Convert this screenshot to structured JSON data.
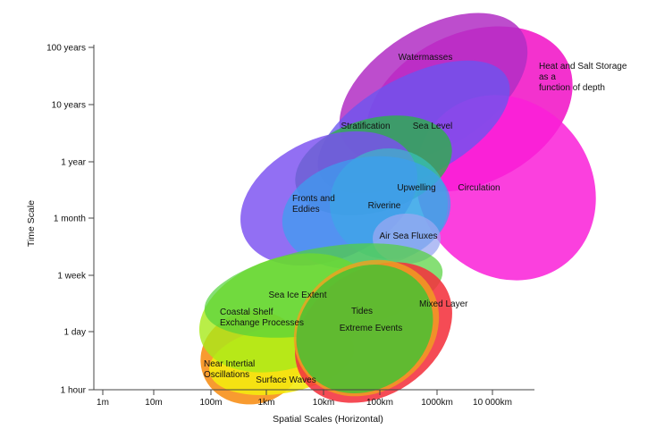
{
  "chart_data": {
    "type": "scale-diagram",
    "title": "",
    "xlabel": "Spatial Scales (Horizontal)",
    "ylabel": "Time Scale",
    "x_ticks": [
      "1m",
      "10m",
      "100m",
      "1km",
      "10km",
      "100km",
      "1000km",
      "10 000km"
    ],
    "y_ticks": [
      "1 hour",
      "1 day",
      "1 week",
      "1 month",
      "1 year",
      "10 years",
      "100 years"
    ],
    "regions": [
      {
        "name": "Heat and Salt Storage as a function of depth",
        "lines": [
          "Heat and Salt Storage",
          "as a",
          "function of depth"
        ],
        "color": "#f21cc9",
        "x_range": [
          "100km",
          "10 000km"
        ],
        "y_range": [
          "1 month",
          "100 years"
        ]
      },
      {
        "name": "Watermasses",
        "lines": [
          "Watermasses"
        ],
        "color": "#b12ec4",
        "x_range": [
          "10km",
          "10 000km"
        ],
        "y_range": [
          "1 year",
          "100 years"
        ]
      },
      {
        "name": "Circulation",
        "lines": [
          "Circulation"
        ],
        "color": "#fa1ed8",
        "x_range": [
          "100km",
          "10 000km"
        ],
        "y_range": [
          "1 week",
          "10 years"
        ]
      },
      {
        "name": "Sea Level",
        "lines": [
          "Sea Level"
        ],
        "color": "#6a55f0",
        "x_range": [
          "10km",
          "1000km"
        ],
        "y_range": [
          "1 month",
          "10 years"
        ]
      },
      {
        "name": "Stratification",
        "lines": [
          "Stratification"
        ],
        "color": "#2fad4e",
        "x_range": [
          "10km",
          "1000km"
        ],
        "y_range": [
          "1 week",
          "10 years"
        ]
      },
      {
        "name": "Fronts and Eddies",
        "lines": [
          "Fronts and",
          "Eddies"
        ],
        "color": "#7a4ff0",
        "x_range": [
          "1km",
          "100km"
        ],
        "y_range": [
          "1 week",
          "1 year"
        ]
      },
      {
        "name": "Upwelling",
        "lines": [
          "Upwelling"
        ],
        "color": "#35c8c8",
        "x_range": [
          "10km",
          "1000km"
        ],
        "y_range": [
          "1 week",
          "1 year"
        ]
      },
      {
        "name": "Riverine",
        "lines": [
          "Riverine"
        ],
        "color": "#3aa0f0",
        "x_range": [
          "10km",
          "1000km"
        ],
        "y_range": [
          "1 week",
          "1 year"
        ]
      },
      {
        "name": "Air Sea Fluxes",
        "lines": [
          "Air Sea Fluxes"
        ],
        "color": "#9aa8f2",
        "x_range": [
          "10km",
          "1000km"
        ],
        "y_range": [
          "1 week",
          "1 month"
        ]
      },
      {
        "name": "Near Intertial Oscillations",
        "lines": [
          "Near Intertial",
          "Oscillations"
        ],
        "color": "#f7931e",
        "x_range": [
          "100m",
          "10km"
        ],
        "y_range": [
          "1 hour",
          "1 day"
        ]
      },
      {
        "name": "Surface Waves",
        "lines": [
          "Surface Waves"
        ],
        "color": "#f4ea10",
        "x_range": [
          "100m",
          "100km"
        ],
        "y_range": [
          "1 hour",
          "1 day"
        ]
      },
      {
        "name": "Coastal Shelf Exchange Processes",
        "lines": [
          "Coastal Shelf",
          "Exchange Processes"
        ],
        "color": "#a8ea1a",
        "x_range": [
          "100m",
          "100km"
        ],
        "y_range": [
          "1 hour",
          "1 week"
        ]
      },
      {
        "name": "Sea Ice Extent",
        "lines": [
          "Sea Ice Extent"
        ],
        "color": "#52d23a",
        "x_range": [
          "1km",
          "1000km"
        ],
        "y_range": [
          "1 day",
          "1 month"
        ]
      },
      {
        "name": "Mixed Layer",
        "lines": [
          "Mixed Layer"
        ],
        "color": "#f4323e",
        "x_range": [
          "10km",
          "1000km"
        ],
        "y_range": [
          "1 hour",
          "1 week"
        ]
      },
      {
        "name": "Tides",
        "lines": [
          "Tides"
        ],
        "color": "#f0a020",
        "x_range": [
          "10km",
          "1000km"
        ],
        "y_range": [
          "1 hour",
          "1 week"
        ]
      },
      {
        "name": "Extreme Events",
        "lines": [
          "Extreme Events"
        ],
        "color": "#46c232",
        "x_range": [
          "10km",
          "1000km"
        ],
        "y_range": [
          "1 hour",
          "1 week"
        ]
      }
    ]
  }
}
